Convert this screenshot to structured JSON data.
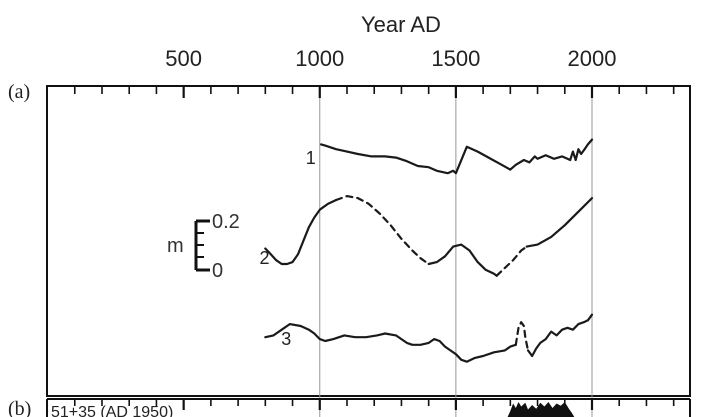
{
  "chart_data": {
    "type": "line",
    "xlabel": "Year AD",
    "x_ticks": [
      500,
      1000,
      1500,
      2000
    ],
    "xlim": [
      -2,
      2360
    ],
    "panel_labels": [
      "(a)",
      "(b)"
    ],
    "panel_b_label": "51+35 (AD 1950)",
    "scale_bar": {
      "unit": "m",
      "labels": [
        "0.2",
        "0"
      ],
      "range": [
        0,
        0.2
      ]
    },
    "series": [
      {
        "name": "1",
        "segments": [
          {
            "style": "solid",
            "points": [
              [
                1005,
                0.88
              ],
              [
                1020,
                0.87
              ],
              [
                1060,
                0.84
              ],
              [
                1100,
                0.82
              ],
              [
                1140,
                0.8
              ],
              [
                1190,
                0.78
              ],
              [
                1240,
                0.78
              ],
              [
                1280,
                0.77
              ],
              [
                1320,
                0.74
              ],
              [
                1360,
                0.7
              ],
              [
                1400,
                0.69
              ],
              [
                1430,
                0.66
              ],
              [
                1470,
                0.64
              ],
              [
                1490,
                0.66
              ],
              [
                1500,
                0.64
              ],
              [
                1540,
                0.86
              ],
              [
                1580,
                0.82
              ],
              [
                1620,
                0.77
              ],
              [
                1660,
                0.72
              ],
              [
                1700,
                0.67
              ],
              [
                1720,
                0.71
              ],
              [
                1750,
                0.75
              ],
              [
                1770,
                0.73
              ],
              [
                1790,
                0.78
              ],
              [
                1800,
                0.76
              ],
              [
                1830,
                0.79
              ],
              [
                1860,
                0.76
              ],
              [
                1890,
                0.78
              ],
              [
                1920,
                0.75
              ],
              [
                1930,
                0.82
              ],
              [
                1940,
                0.75
              ],
              [
                1950,
                0.84
              ],
              [
                1960,
                0.8
              ],
              [
                1970,
                0.83
              ],
              [
                1985,
                0.88
              ],
              [
                2000,
                0.92
              ]
            ]
          }
        ]
      },
      {
        "name": "2",
        "segments": [
          {
            "style": "solid",
            "points": [
              [
                800,
                0.42
              ],
              [
                820,
                0.39
              ],
              [
                840,
                0.36
              ],
              [
                860,
                0.34
              ],
              [
                880,
                0.34
              ],
              [
                900,
                0.35
              ],
              [
                920,
                0.39
              ],
              [
                940,
                0.46
              ],
              [
                960,
                0.53
              ],
              [
                980,
                0.58
              ],
              [
                1000,
                0.62
              ],
              [
                1030,
                0.65
              ],
              [
                1060,
                0.67
              ]
            ]
          },
          {
            "style": "dashed",
            "points": [
              [
                1060,
                0.67
              ],
              [
                1100,
                0.69
              ],
              [
                1140,
                0.68
              ],
              [
                1180,
                0.65
              ],
              [
                1220,
                0.6
              ],
              [
                1260,
                0.54
              ],
              [
                1300,
                0.47
              ],
              [
                1340,
                0.41
              ],
              [
                1370,
                0.37
              ],
              [
                1400,
                0.34
              ]
            ]
          },
          {
            "style": "solid",
            "points": [
              [
                1400,
                0.34
              ],
              [
                1430,
                0.35
              ],
              [
                1460,
                0.38
              ],
              [
                1490,
                0.43
              ],
              [
                1520,
                0.44
              ],
              [
                1550,
                0.41
              ],
              [
                1580,
                0.35
              ],
              [
                1610,
                0.31
              ],
              [
                1640,
                0.29
              ],
              [
                1650,
                0.28
              ]
            ]
          },
          {
            "style": "dashed",
            "points": [
              [
                1650,
                0.28
              ],
              [
                1680,
                0.32
              ],
              [
                1710,
                0.36
              ],
              [
                1740,
                0.41
              ],
              [
                1760,
                0.43
              ]
            ]
          },
          {
            "style": "solid",
            "points": [
              [
                1760,
                0.43
              ],
              [
                1800,
                0.44
              ],
              [
                1850,
                0.48
              ],
              [
                1900,
                0.54
              ],
              [
                1950,
                0.61
              ],
              [
                2000,
                0.68
              ]
            ]
          }
        ]
      },
      {
        "name": "3",
        "segments": [
          {
            "style": "solid",
            "points": [
              [
                800,
                0.27
              ],
              [
                830,
                0.28
              ],
              [
                860,
                0.31
              ],
              [
                890,
                0.34
              ],
              [
                930,
                0.33
              ],
              [
                960,
                0.31
              ],
              [
                980,
                0.29
              ],
              [
                1000,
                0.26
              ],
              [
                1020,
                0.25
              ],
              [
                1050,
                0.26
              ],
              [
                1090,
                0.28
              ],
              [
                1130,
                0.27
              ],
              [
                1170,
                0.27
              ],
              [
                1210,
                0.28
              ],
              [
                1240,
                0.29
              ],
              [
                1280,
                0.28
              ],
              [
                1300,
                0.26
              ],
              [
                1320,
                0.24
              ],
              [
                1340,
                0.23
              ],
              [
                1370,
                0.23
              ],
              [
                1400,
                0.24
              ],
              [
                1420,
                0.26
              ],
              [
                1440,
                0.25
              ],
              [
                1460,
                0.22
              ],
              [
                1480,
                0.2
              ],
              [
                1500,
                0.18
              ],
              [
                1520,
                0.15
              ],
              [
                1540,
                0.14
              ],
              [
                1570,
                0.16
              ],
              [
                1600,
                0.17
              ],
              [
                1640,
                0.19
              ],
              [
                1680,
                0.2
              ],
              [
                1700,
                0.22
              ],
              [
                1720,
                0.23
              ]
            ]
          },
          {
            "style": "dashed",
            "points": [
              [
                1720,
                0.23
              ],
              [
                1730,
                0.32
              ],
              [
                1740,
                0.35
              ],
              [
                1750,
                0.33
              ],
              [
                1755,
                0.27
              ],
              [
                1765,
                0.2
              ]
            ]
          },
          {
            "style": "solid",
            "points": [
              [
                1765,
                0.2
              ],
              [
                1780,
                0.17
              ],
              [
                1795,
                0.21
              ],
              [
                1810,
                0.24
              ],
              [
                1830,
                0.26
              ],
              [
                1850,
                0.3
              ],
              [
                1870,
                0.28
              ],
              [
                1890,
                0.31
              ],
              [
                1910,
                0.32
              ],
              [
                1930,
                0.31
              ],
              [
                1950,
                0.34
              ],
              [
                1970,
                0.35
              ],
              [
                1985,
                0.36
              ],
              [
                2000,
                0.39
              ]
            ]
          }
        ]
      }
    ],
    "panel_b_area": {
      "type": "area",
      "points": [
        [
          1690,
          0.0
        ],
        [
          1700,
          0.4
        ],
        [
          1710,
          0.9
        ],
        [
          1720,
          0.6
        ],
        [
          1730,
          1.0
        ],
        [
          1740,
          0.7
        ],
        [
          1755,
          0.95
        ],
        [
          1765,
          0.5
        ],
        [
          1780,
          0.8
        ],
        [
          1795,
          0.55
        ],
        [
          1810,
          0.95
        ],
        [
          1825,
          0.7
        ],
        [
          1840,
          1.0
        ],
        [
          1855,
          0.6
        ],
        [
          1870,
          0.9
        ],
        [
          1885,
          0.75
        ],
        [
          1900,
          1.0
        ],
        [
          1915,
          0.55
        ],
        [
          1925,
          0.3
        ],
        [
          1935,
          0.0
        ]
      ]
    }
  }
}
